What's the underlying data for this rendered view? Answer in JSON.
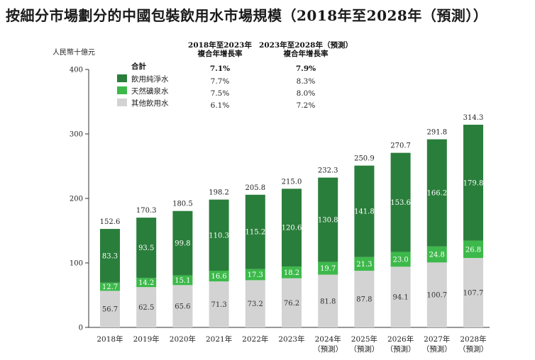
{
  "title": "按細分市場劃分的中國包裝飲用水市場規模（2018年至2028年（預測））",
  "chart_data": {
    "type": "bar",
    "stacked": true,
    "unit_label": "人民幣十億元",
    "ylim": [
      0,
      400
    ],
    "yticks": [
      0,
      100,
      200,
      300,
      400
    ],
    "categories": [
      [
        "2018年"
      ],
      [
        "2019年"
      ],
      [
        "2020年"
      ],
      [
        "2021年"
      ],
      [
        "2022年"
      ],
      [
        "2023年"
      ],
      [
        "2024年",
        "（預測）"
      ],
      [
        "2025年",
        "（預測）"
      ],
      [
        "2026年",
        "（預測）"
      ],
      [
        "2027年",
        "（預測）"
      ],
      [
        "2028年",
        "（預測）"
      ]
    ],
    "totals": [
      152.6,
      170.3,
      180.5,
      198.2,
      205.8,
      215.0,
      232.3,
      250.9,
      270.7,
      291.8,
      314.3
    ],
    "series": [
      {
        "name": "其他飲用水",
        "color": "#d3d3d3",
        "values": [
          56.7,
          62.5,
          65.6,
          71.3,
          73.2,
          76.2,
          81.8,
          87.8,
          94.1,
          100.7,
          107.7
        ]
      },
      {
        "name": "天然礦泉水",
        "color": "#3cb94a",
        "values": [
          12.7,
          14.2,
          15.1,
          16.6,
          17.3,
          18.2,
          19.7,
          21.3,
          23.0,
          24.8,
          26.8
        ]
      },
      {
        "name": "飲用純淨水",
        "color": "#2a7e3b",
        "values": [
          83.3,
          93.5,
          99.8,
          110.3,
          115.2,
          120.6,
          130.8,
          141.8,
          153.6,
          166.2,
          179.8
        ]
      }
    ],
    "cagr_table": {
      "headers": [
        [
          "2018年至2023年",
          "複合年增長率"
        ],
        [
          "2023年至2028年（預測）",
          "複合年增長率"
        ]
      ],
      "rows": [
        {
          "label": "合計",
          "color": null,
          "bold": true,
          "values": [
            "7.1%",
            "7.9%"
          ]
        },
        {
          "label": "飲用純淨水",
          "color": "#2a7e3b",
          "bold": false,
          "values": [
            "7.7%",
            "8.3%"
          ]
        },
        {
          "label": "天然礦泉水",
          "color": "#3cb94a",
          "bold": false,
          "values": [
            "7.5%",
            "8.0%"
          ]
        },
        {
          "label": "其他飲用水",
          "color": "#d3d3d3",
          "bold": false,
          "values": [
            "6.1%",
            "7.2%"
          ]
        }
      ]
    }
  }
}
